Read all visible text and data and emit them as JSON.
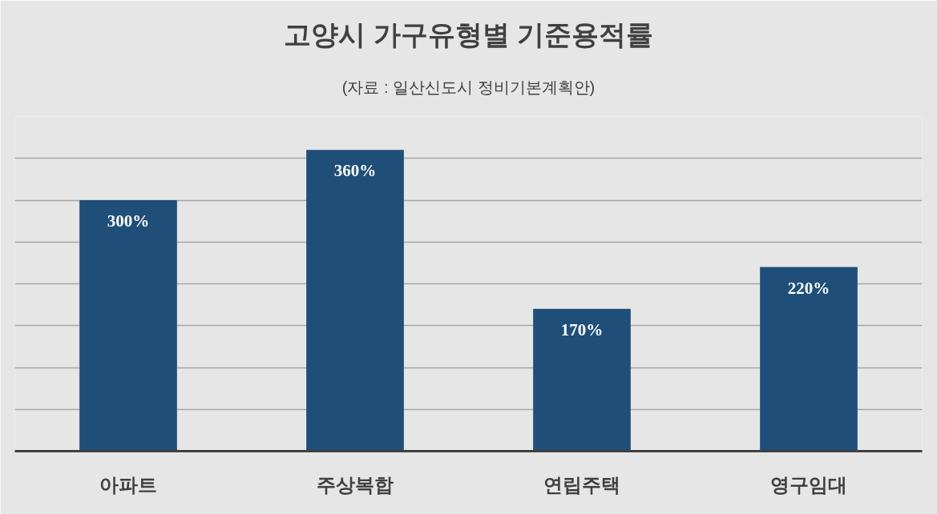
{
  "chart_data": {
    "type": "bar",
    "title": "고양시 가구유형별 기준용적률",
    "subtitle": "(자료 : 일산신도시 정비기본계획안)",
    "categories": [
      "아파트",
      "주상복합",
      "연립주택",
      "영구임대"
    ],
    "values": [
      300,
      360,
      170,
      220
    ],
    "color": "#1f4e79",
    "value_labels": [
      "300%",
      "360%",
      "170%",
      "220%"
    ],
    "ylim": [
      0,
      400
    ],
    "yticks": [
      {
        "value": 0,
        "label": null
      },
      {
        "value": 50,
        "label": null
      },
      {
        "value": 100,
        "label": null
      },
      {
        "value": 150,
        "label": null
      },
      {
        "value": 200,
        "label": null
      },
      {
        "value": 250,
        "label": null
      },
      {
        "value": 300,
        "label": null
      },
      {
        "value": 350,
        "label": null
      },
      {
        "value": 400,
        "label": null
      }
    ],
    "grid": "y",
    "tick_labels": "x"
  }
}
